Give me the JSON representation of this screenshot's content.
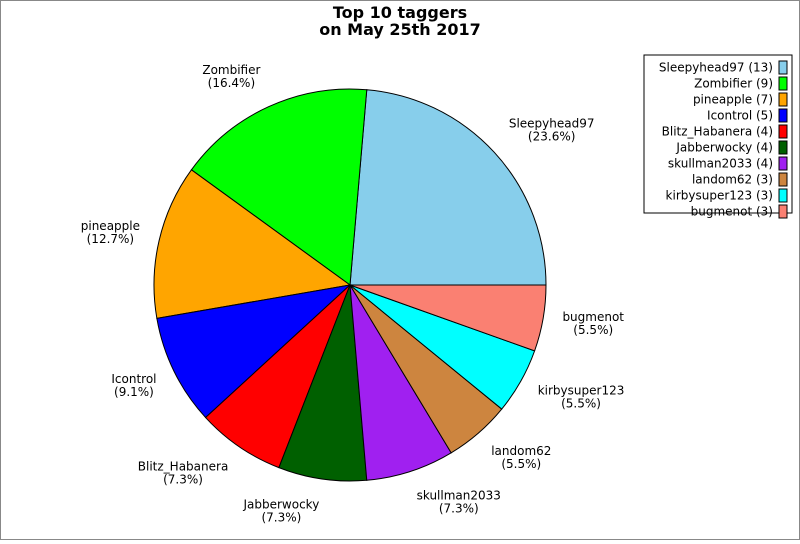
{
  "chart_data": {
    "type": "pie",
    "title_lines": [
      "Top 10 taggers",
      "on May 25th 2017"
    ],
    "legend_placement": "top-right",
    "slices": [
      {
        "name": "Sleepyhead97",
        "value": 13,
        "percent_label": "(23.6%)",
        "legend": "Sleepyhead97 (13)",
        "color": "#87ceeb"
      },
      {
        "name": "Zombifier",
        "value": 9,
        "percent_label": "(16.4%)",
        "legend": "Zombifier (9)",
        "color": "#00ff00"
      },
      {
        "name": "pineapple",
        "value": 7,
        "percent_label": "(12.7%)",
        "legend": "pineapple (7)",
        "color": "#ffa500"
      },
      {
        "name": "Icontrol",
        "value": 5,
        "percent_label": "(9.1%)",
        "legend": "Icontrol (5)",
        "color": "#0000ff"
      },
      {
        "name": "Blitz_Habanera",
        "value": 4,
        "percent_label": "(7.3%)",
        "legend": "Blitz_Habanera (4)",
        "color": "#ff0000"
      },
      {
        "name": "Jabberwocky",
        "value": 4,
        "percent_label": "(7.3%)",
        "legend": "Jabberwocky (4)",
        "color": "#006000"
      },
      {
        "name": "skullman2033",
        "value": 4,
        "percent_label": "(7.3%)",
        "legend": "skullman2033 (4)",
        "color": "#a020f0"
      },
      {
        "name": "landom62",
        "value": 3,
        "percent_label": "(5.5%)",
        "legend": "landom62 (3)",
        "color": "#cd853f"
      },
      {
        "name": "kirbysuper123",
        "value": 3,
        "percent_label": "(5.5%)",
        "legend": "kirbysuper123 (3)",
        "color": "#00ffff"
      },
      {
        "name": "bugmenot",
        "value": 3,
        "percent_label": "(5.5%)",
        "legend": "bugmenot (3)",
        "color": "#fa8072"
      }
    ]
  }
}
